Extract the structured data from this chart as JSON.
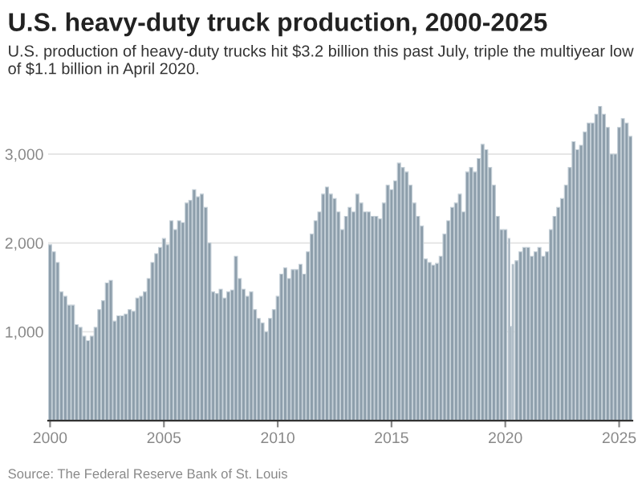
{
  "chart_data": {
    "type": "bar",
    "title": "U.S. heavy-duty truck production, 2000-2025",
    "subtitle": "U.S. production of heavy-duty trucks hit $3.2 billion this past July, triple the multiyear low of $1.1 billion in April 2020.",
    "annotations": [
      "Source: The Federal Reserve Bank of St. Louis"
    ],
    "x": [
      "2000-01",
      "2000-03",
      "2000-05",
      "2000-07",
      "2000-09",
      "2000-11",
      "2001-01",
      "2001-03",
      "2001-05",
      "2001-07",
      "2001-09",
      "2001-11",
      "2002-01",
      "2002-03",
      "2002-05",
      "2002-07",
      "2002-09",
      "2002-11",
      "2003-01",
      "2003-03",
      "2003-05",
      "2003-07",
      "2003-09",
      "2003-11",
      "2004-01",
      "2004-03",
      "2004-05",
      "2004-07",
      "2004-09",
      "2004-11",
      "2005-01",
      "2005-03",
      "2005-05",
      "2005-07",
      "2005-09",
      "2005-11",
      "2006-01",
      "2006-03",
      "2006-05",
      "2006-07",
      "2006-09",
      "2006-11",
      "2007-01",
      "2007-03",
      "2007-05",
      "2007-07",
      "2007-09",
      "2007-11",
      "2008-01",
      "2008-03",
      "2008-05",
      "2008-07",
      "2008-09",
      "2008-11",
      "2009-01",
      "2009-03",
      "2009-05",
      "2009-07",
      "2009-09",
      "2009-11",
      "2010-01",
      "2010-03",
      "2010-05",
      "2010-07",
      "2010-09",
      "2010-11",
      "2011-01",
      "2011-03",
      "2011-05",
      "2011-07",
      "2011-09",
      "2011-11",
      "2012-01",
      "2012-03",
      "2012-05",
      "2012-07",
      "2012-09",
      "2012-11",
      "2013-01",
      "2013-03",
      "2013-05",
      "2013-07",
      "2013-09",
      "2013-11",
      "2014-01",
      "2014-03",
      "2014-05",
      "2014-07",
      "2014-09",
      "2014-11",
      "2015-01",
      "2015-03",
      "2015-05",
      "2015-07",
      "2015-09",
      "2015-11",
      "2016-01",
      "2016-03",
      "2016-05",
      "2016-07",
      "2016-09",
      "2016-11",
      "2017-01",
      "2017-03",
      "2017-05",
      "2017-07",
      "2017-09",
      "2017-11",
      "2018-01",
      "2018-03",
      "2018-05",
      "2018-07",
      "2018-09",
      "2018-11",
      "2019-01",
      "2019-03",
      "2019-05",
      "2019-07",
      "2019-09",
      "2019-11",
      "2020-01",
      "2020-03",
      "2020-04",
      "2020-05",
      "2020-07",
      "2020-09",
      "2020-11",
      "2021-01",
      "2021-03",
      "2021-05",
      "2021-07",
      "2021-09",
      "2021-11",
      "2022-01",
      "2022-03",
      "2022-05",
      "2022-07",
      "2022-09",
      "2022-11",
      "2023-01",
      "2023-03",
      "2023-05",
      "2023-07",
      "2023-09",
      "2023-11",
      "2024-01",
      "2024-03",
      "2024-05",
      "2024-07",
      "2024-09",
      "2024-11",
      "2025-01",
      "2025-03",
      "2025-05",
      "2025-07"
    ],
    "series": [
      {
        "color": "#8d9eab",
        "values": [
          1980,
          1900,
          1780,
          1450,
          1400,
          1300,
          1300,
          1080,
          1050,
          950,
          900,
          950,
          1050,
          1250,
          1350,
          1550,
          1580,
          1120,
          1180,
          1180,
          1200,
          1250,
          1230,
          1380,
          1400,
          1450,
          1600,
          1780,
          1880,
          1950,
          2050,
          1980,
          2250,
          2150,
          2250,
          2230,
          2450,
          2480,
          2600,
          2520,
          2550,
          2400,
          2000,
          1450,
          1430,
          1480,
          1380,
          1450,
          1470,
          1850,
          1600,
          1480,
          1400,
          1450,
          1250,
          1150,
          1100,
          1000,
          1150,
          1250,
          1400,
          1650,
          1720,
          1600,
          1700,
          1700,
          1760,
          1650,
          1900,
          2100,
          2250,
          2350,
          2550,
          2630,
          2550,
          2500,
          2350,
          2150,
          2300,
          2400,
          2350,
          2550,
          2450,
          2350,
          2350,
          2300,
          2300,
          2270,
          2450,
          2650,
          2600,
          2700,
          2900,
          2850,
          2800,
          2650,
          2450,
          2300,
          2190,
          1820,
          1780,
          1750,
          1770,
          1850,
          2100,
          2250,
          2400,
          2450,
          2550,
          2350,
          2800,
          2850,
          2800,
          2950,
          3110,
          3050,
          2850,
          2650,
          2300,
          2150,
          2150,
          2050,
          1060,
          1760,
          1800,
          1900,
          1950,
          1950,
          1850,
          1900,
          1950,
          1850,
          1900,
          2150,
          2300,
          2400,
          2500,
          2650,
          2850,
          3140,
          3050,
          3100,
          3250,
          3350,
          3350,
          3450,
          3540,
          3450,
          3300,
          3000,
          3000,
          3300,
          3400,
          3350,
          3200
        ]
      }
    ],
    "xlim": [
      "1999-12",
      "2025-08"
    ],
    "xticks": [
      {
        "value": "2000-01",
        "label": "2000"
      },
      {
        "value": "2005-01",
        "label": "2005"
      },
      {
        "value": "2010-01",
        "label": "2010"
      },
      {
        "value": "2015-01",
        "label": "2015"
      },
      {
        "value": "2020-01",
        "label": "2020"
      },
      {
        "value": "2025-01",
        "label": "2025"
      }
    ],
    "ylim": [
      0,
      3540
    ],
    "yticks": [
      {
        "value": 0,
        "label": null
      },
      {
        "value": 1000,
        "label": "1,000"
      },
      {
        "value": 2000,
        "label": "2,000"
      },
      {
        "value": 3000,
        "label": "3,000"
      }
    ],
    "grid": "y",
    "legend": false
  }
}
